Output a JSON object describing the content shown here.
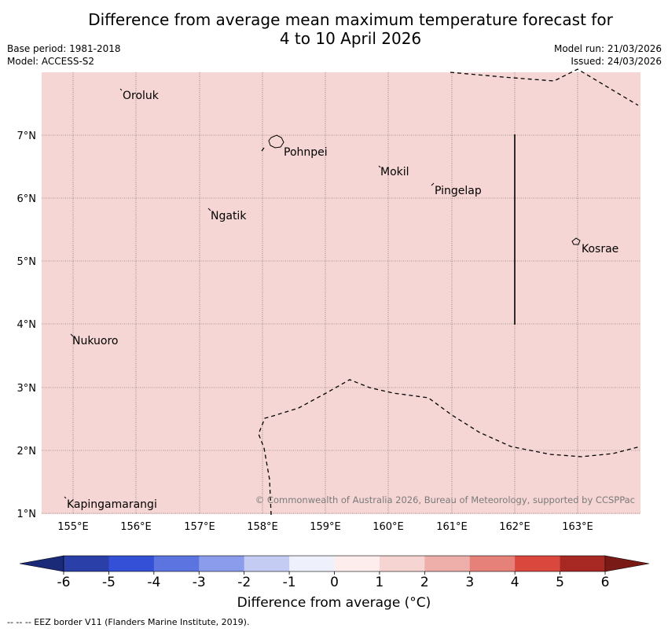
{
  "title_line1": "Difference from average mean maximum temperature forecast for",
  "title_line2": "4 to 10 April 2026",
  "base_period": "Base period: 1981-2018",
  "model": "Model: ACCESS-S2",
  "model_run": "Model run: 21/03/2026",
  "issued": "Issued: 24/03/2026",
  "copyright": "© Commonwealth of Australia 2026, Bureau of Meteorology, supported by CCSPPac",
  "footnote": "--  --  -- EEZ border V11 (Flanders Marine Institute, 2019).",
  "colorbar": {
    "label": "Difference from average (°C)",
    "ticks": [
      "-6",
      "-5",
      "-4",
      "-3",
      "-2",
      "-1",
      "0",
      "1",
      "2",
      "3",
      "4",
      "5",
      "6"
    ],
    "colors": [
      "#2a3fa8",
      "#3450d6",
      "#5b74e0",
      "#8a9ceb",
      "#c5ccf3",
      "#eef0fb",
      "#fdeeed",
      "#f6d4d2",
      "#eeaeaa",
      "#e58179",
      "#d9473d",
      "#a82823"
    ],
    "under_color": "#1a2a78",
    "over_color": "#7a1a17"
  },
  "map": {
    "fill_color": "#f5d6d4",
    "lon_labels": [
      "155°E",
      "156°E",
      "157°E",
      "158°E",
      "159°E",
      "160°E",
      "161°E",
      "162°E",
      "163°E"
    ],
    "lat_labels": [
      "7°N",
      "6°N",
      "5°N",
      "4°N",
      "3°N",
      "2°N",
      "1°N"
    ],
    "places": [
      "Oroluk",
      "Pohnpei",
      "Mokil",
      "Pingelap",
      "Ngatik",
      "Kosrae",
      "Nukuoro",
      "Kapingamarangi"
    ]
  }
}
